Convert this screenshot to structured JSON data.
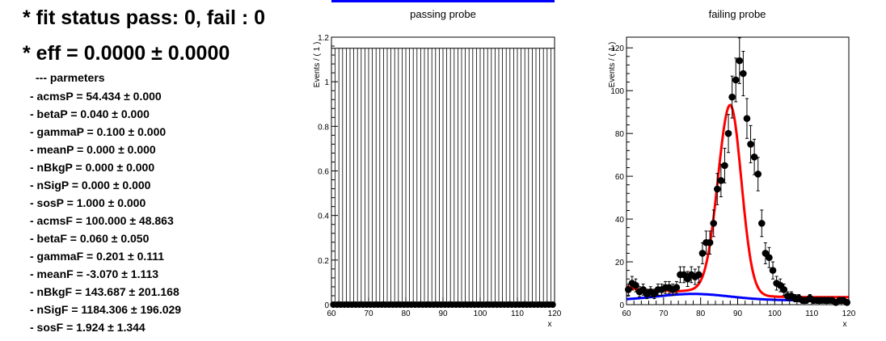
{
  "summary": {
    "status_line": "* fit status pass: 0, fail : 0",
    "eff_line": "* eff = 0.0000 ± 0.0000",
    "params_header": "--- parmeters",
    "params": [
      "- acmsP = 54.434 ± 0.000",
      "- betaP = 0.040 ± 0.000",
      "- gammaP = 0.100 ± 0.000",
      "- meanP = 0.000 ± 0.000",
      "- nBkgP = 0.000 ± 0.000",
      "- nSigP = 0.000 ± 0.000",
      "- sosP = 1.000 ± 0.000",
      "- acmsF = 100.000 ± 48.863",
      "- betaF = 0.060 ± 0.050",
      "- gammaF = 0.201 ± 0.111",
      "- meanF = -3.070 ± 1.113",
      "- nBkgF = 143.687 ± 201.168",
      "- nSigF = 1184.306 ± 196.029",
      "- sosF = 1.924 ± 1.344"
    ]
  },
  "chart_data": [
    {
      "type": "bar",
      "title": "passing probe",
      "xlabel": "x",
      "ylabel": "Events / ( 1 )",
      "xlim": [
        60,
        120
      ],
      "ylim": [
        0,
        1.2
      ],
      "xticks": [
        60,
        70,
        80,
        90,
        100,
        110,
        120
      ],
      "yticks": [
        0,
        0.2,
        0.4,
        0.6,
        0.8,
        1,
        1.2
      ],
      "xtick_labels": [
        "60",
        "70",
        "80",
        "90",
        "100",
        "110",
        "120"
      ],
      "ytick_labels": [
        "0",
        "0.2",
        "0.4",
        "0.6",
        "0.8",
        "1",
        "1.2"
      ],
      "bin_width": 1,
      "bar_height": 1.15,
      "points_y": 0
    },
    {
      "type": "scatter",
      "title": "failing probe",
      "xlabel": "x",
      "ylabel": "Events / ( 1 )",
      "xlim": [
        60,
        120
      ],
      "ylim": [
        0,
        125
      ],
      "xticks": [
        60,
        70,
        80,
        90,
        100,
        110,
        120
      ],
      "yticks": [
        0,
        20,
        40,
        60,
        80,
        100,
        120
      ],
      "xtick_labels": [
        "60",
        "70",
        "80",
        "90",
        "100",
        "110",
        "120"
      ],
      "ytick_labels": [
        "0",
        "20",
        "40",
        "60",
        "80",
        "100",
        "120"
      ],
      "points": {
        "x": [
          60.5,
          61.5,
          62.5,
          63.5,
          64.5,
          65.5,
          66.5,
          67.5,
          68.5,
          69.5,
          70.5,
          71.5,
          72.5,
          73.5,
          74.5,
          75.5,
          76.5,
          77.5,
          78.5,
          79.5,
          80.5,
          81.5,
          82.5,
          83.5,
          84.5,
          85.5,
          86.5,
          87.5,
          88.5,
          89.5,
          90.5,
          91.5,
          92.5,
          93.5,
          94.5,
          95.5,
          96.5,
          97.5,
          98.5,
          99.5,
          100.5,
          101.5,
          102.5,
          103.5,
          104.5,
          105.5,
          106.5,
          107.5,
          108.5,
          109.5,
          110.5,
          111.5,
          112.5,
          113.5,
          114.5,
          115.5,
          116.5,
          117.5,
          118.5,
          119.5
        ],
        "y": [
          7,
          10,
          9,
          6,
          7,
          5,
          6,
          5,
          7,
          7,
          8,
          8,
          7,
          8,
          14,
          14,
          12,
          14,
          13,
          14,
          24,
          29,
          29,
          38,
          54,
          58,
          65,
          80,
          97,
          105,
          114,
          108,
          87,
          75,
          69,
          61,
          38,
          24,
          22,
          16,
          10,
          9,
          7,
          4,
          4,
          3,
          3,
          2,
          2,
          3,
          2,
          2,
          2,
          2,
          2,
          2,
          1,
          2,
          2,
          1
        ],
        "err": [
          2.6,
          3.2,
          3.0,
          2.4,
          2.6,
          2.2,
          2.4,
          2.2,
          2.6,
          2.6,
          2.8,
          2.8,
          2.6,
          2.8,
          3.7,
          3.7,
          3.5,
          3.7,
          3.6,
          3.7,
          4.9,
          5.4,
          5.4,
          6.2,
          7.3,
          7.6,
          8.1,
          8.9,
          9.8,
          10.2,
          10.7,
          10.4,
          9.3,
          8.7,
          8.3,
          7.8,
          6.2,
          4.9,
          4.7,
          4.0,
          3.2,
          3.0,
          2.6,
          2.0,
          2.0,
          1.7,
          1.7,
          1.4,
          1.4,
          1.7,
          1.4,
          1.4,
          1.4,
          1.4,
          1.4,
          1.4,
          1.0,
          1.4,
          1.4,
          1.0
        ]
      },
      "colors": {
        "total_fit": "#ff0000",
        "background_fit": "#0000ff"
      }
    }
  ]
}
